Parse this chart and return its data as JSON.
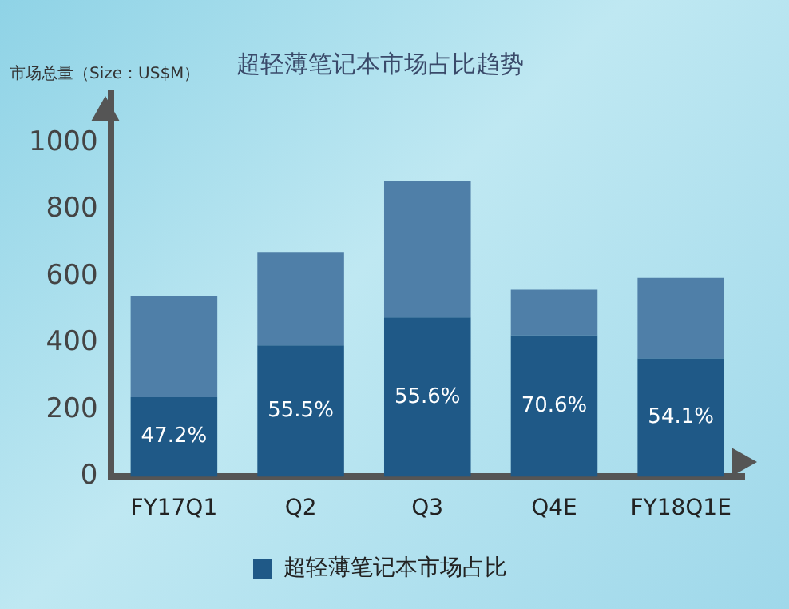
{
  "chart_data": {
    "type": "bar",
    "stacked": true,
    "title": "超轻薄笔记本市场占比趋势",
    "ylabel": "市场总量（Size：US$M）",
    "categories": [
      "FY17Q1",
      "Q2",
      "Q3",
      "Q4E",
      "FY18Q1E"
    ],
    "series": [
      {
        "name": "超轻薄笔记本市场占比",
        "color": "#1f5987",
        "values": [
          238,
          393,
          477,
          423,
          354
        ]
      },
      {
        "color": "#4f7fa8",
        "values": [
          304,
          280,
          409,
          137,
          241
        ]
      }
    ],
    "annotations": [
      "47.2%",
      "55.5%",
      "55.6%",
      "70.6%",
      "54.1%"
    ],
    "ylim": [
      0,
      1150
    ],
    "yticks": [
      0,
      200,
      400,
      600,
      800,
      1000
    ],
    "grid": false,
    "legend": "bottom"
  }
}
